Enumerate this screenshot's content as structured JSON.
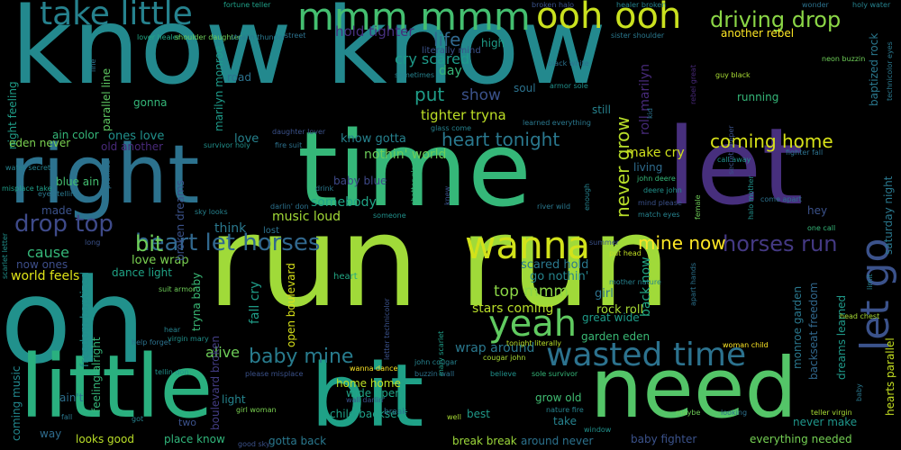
{
  "words": [
    {
      "text": "know know",
      "color": "#23898e"
    },
    {
      "text": "run run",
      "color": "#a0da39"
    },
    {
      "text": "oh",
      "color": "#21918c"
    },
    {
      "text": "time",
      "color": "#35b779"
    },
    {
      "text": "right",
      "color": "#2c728e"
    },
    {
      "text": "let",
      "color": "#472f7d"
    },
    {
      "text": "little",
      "color": "#2ab07f"
    },
    {
      "text": "bit",
      "color": "#1fa187"
    },
    {
      "text": "need",
      "color": "#54c568"
    },
    {
      "text": "wanna",
      "color": "#d2e21b"
    },
    {
      "text": "yeah",
      "color": "#60ca60"
    },
    {
      "text": "wasted time",
      "color": "#2c728e"
    },
    {
      "text": "let go",
      "color": "#3b528b"
    },
    {
      "text": "take little",
      "color": "#26828e"
    },
    {
      "text": "mmm mmm",
      "color": "#44bf70"
    },
    {
      "text": "ooh ooh",
      "color": "#cae11f"
    },
    {
      "text": "driving drop",
      "color": "#8bd646"
    },
    {
      "text": "heart let horses",
      "color": "#31688e"
    },
    {
      "text": "horses run",
      "color": "#443983"
    },
    {
      "text": "heart tonight",
      "color": "#2a788e"
    },
    {
      "text": "coming home",
      "color": "#d8e219"
    },
    {
      "text": "drop top",
      "color": "#3e4a89"
    },
    {
      "text": "baby mine",
      "color": "#287c8e"
    },
    {
      "text": "mine now",
      "color": "#fde725"
    },
    {
      "text": "never grow",
      "color": "#b8de29"
    },
    {
      "text": "hold tighter",
      "color": "#46307e"
    },
    {
      "text": "life",
      "color": "#31688e"
    },
    {
      "text": "cry scared",
      "color": "#1e9b8a"
    },
    {
      "text": "put",
      "color": "#1f9e89"
    },
    {
      "text": "show",
      "color": "#3b528b"
    },
    {
      "text": "tighter tryna",
      "color": "#bddf26"
    },
    {
      "text": "day",
      "color": "#35b779"
    },
    {
      "text": "roll marilyn",
      "color": "#472a7a"
    },
    {
      "text": "ones love",
      "color": "#21918c"
    },
    {
      "text": "know gotta",
      "color": "#26828e"
    },
    {
      "text": "nothin' world",
      "color": "#6ccd5a"
    },
    {
      "text": "make cry",
      "color": "#d0e11c"
    },
    {
      "text": "living",
      "color": "#2f6c8e"
    },
    {
      "text": "love",
      "color": "#26828e"
    },
    {
      "text": "cause",
      "color": "#35b779"
    },
    {
      "text": "bit",
      "color": "#6ece58"
    },
    {
      "text": "think",
      "color": "#2a788e"
    },
    {
      "text": "music loud",
      "color": "#a2da37"
    },
    {
      "text": "somebody",
      "color": "#20a486"
    },
    {
      "text": "baby blue",
      "color": "#3e4989"
    },
    {
      "text": "blue ain",
      "color": "#44bf70"
    },
    {
      "text": "ain color",
      "color": "#35b779"
    },
    {
      "text": "love wrap",
      "color": "#7ad151"
    },
    {
      "text": "dance light",
      "color": "#20a386"
    },
    {
      "text": "world feels",
      "color": "#dfe318"
    },
    {
      "text": "now ones",
      "color": "#3d4e8a"
    },
    {
      "text": "scared hold",
      "color": "#2a788e"
    },
    {
      "text": "go nothin'",
      "color": "#25858e"
    },
    {
      "text": "top mmm",
      "color": "#8bd646"
    },
    {
      "text": "stars coming",
      "color": "#b8de29"
    },
    {
      "text": "rock roll",
      "color": "#a8db34"
    },
    {
      "text": "great wide",
      "color": "#1e9c89"
    },
    {
      "text": "back now",
      "color": "#22a884"
    },
    {
      "text": "girl",
      "color": "#2c728e"
    },
    {
      "text": "alive",
      "color": "#6ece58"
    },
    {
      "text": "fall cry",
      "color": "#1f9e89"
    },
    {
      "text": "wrap around",
      "color": "#2a788e"
    },
    {
      "text": "garden eden",
      "color": "#3aba76"
    },
    {
      "text": "home home",
      "color": "#bddf26"
    },
    {
      "text": "wide open",
      "color": "#20a486"
    },
    {
      "text": "light",
      "color": "#25848e"
    },
    {
      "text": "ain't",
      "color": "#2d708e"
    },
    {
      "text": "child backseat",
      "color": "#1fa088"
    },
    {
      "text": "best",
      "color": "#1f9a8a"
    },
    {
      "text": "grow old",
      "color": "#40bd72"
    },
    {
      "text": "take",
      "color": "#26828e"
    },
    {
      "text": "never make",
      "color": "#1f968b"
    },
    {
      "text": "looks good",
      "color": "#bade28"
    },
    {
      "text": "place know",
      "color": "#31b57b"
    },
    {
      "text": "gotta back",
      "color": "#2a788e"
    },
    {
      "text": "break break",
      "color": "#9dd93b"
    },
    {
      "text": "around never",
      "color": "#2c728e"
    },
    {
      "text": "baby fighter",
      "color": "#3b528b"
    },
    {
      "text": "everything needed",
      "color": "#75d054"
    },
    {
      "text": "hey",
      "color": "#3b528b"
    },
    {
      "text": "way",
      "color": "#2f6c8e"
    },
    {
      "text": "saturday night",
      "color": "#2a788e"
    },
    {
      "text": "hearts parallel",
      "color": "#c5e021"
    },
    {
      "text": "dreams learned",
      "color": "#1f9a8a"
    },
    {
      "text": "backseat freedom",
      "color": "#31688e"
    },
    {
      "text": "monroe garden",
      "color": "#2a788e"
    },
    {
      "text": "tryna baby",
      "color": "#3aba76"
    },
    {
      "text": "broken dreams",
      "color": "#3b528b"
    },
    {
      "text": "boulevard broken",
      "color": "#433d84"
    },
    {
      "text": "feeling alright",
      "color": "#35b779"
    },
    {
      "text": "coming music",
      "color": "#23888e"
    },
    {
      "text": "freedom baptized",
      "color": "#228d8d"
    },
    {
      "text": "night feeling",
      "color": "#1f9e89"
    },
    {
      "text": "parallel line",
      "color": "#5ec962"
    },
    {
      "text": "marilyn monroe",
      "color": "#1e9b8a"
    },
    {
      "text": "eden never",
      "color": "#7ad151"
    },
    {
      "text": "old another",
      "color": "#482979"
    },
    {
      "text": "another rebel",
      "color": "#fde725"
    },
    {
      "text": "baptized rock",
      "color": "#2a788e"
    },
    {
      "text": "open boulevard",
      "color": "#d8e219"
    },
    {
      "text": "made",
      "color": "#3b528b"
    },
    {
      "text": "gonna",
      "color": "#35b779"
    },
    {
      "text": "road",
      "color": "#2c728e"
    },
    {
      "text": "running",
      "color": "#35b779"
    },
    {
      "text": "still",
      "color": "#26828e"
    },
    {
      "text": "soul",
      "color": "#2c728e"
    },
    {
      "text": "high",
      "color": "#1f9e89"
    },
    {
      "text": "literally mind",
      "color": "#3b528b"
    },
    {
      "text": "fortune teller",
      "color": "#1fa088"
    },
    {
      "text": "lover healer",
      "color": "#22a884"
    },
    {
      "text": "shoulder daughter",
      "color": "#6ece58"
    },
    {
      "text": "stealin thunder",
      "color": "#2a788e"
    },
    {
      "text": "broken halo",
      "color": "#3b528b"
    },
    {
      "text": "healer broken",
      "color": "#26828e"
    },
    {
      "text": "wonder",
      "color": "#2c728e"
    },
    {
      "text": "holy water",
      "color": "#26828e"
    },
    {
      "text": "neon buzzin",
      "color": "#6ece58"
    },
    {
      "text": "black white",
      "color": "#2c728e"
    },
    {
      "text": "guy black",
      "color": "#a8db34"
    },
    {
      "text": "john deere",
      "color": "#35b779"
    },
    {
      "text": "deere john",
      "color": "#21918c"
    },
    {
      "text": "mind please",
      "color": "#3b528b"
    },
    {
      "text": "match eyes",
      "color": "#26828e"
    },
    {
      "text": "come apart",
      "color": "#2c728e"
    },
    {
      "text": "call away",
      "color": "#21918c"
    },
    {
      "text": "one call",
      "color": "#35b779"
    },
    {
      "text": "summer",
      "color": "#3b528b"
    },
    {
      "text": "put head",
      "color": "#c2df23"
    },
    {
      "text": "river wild",
      "color": "#2a788e"
    },
    {
      "text": "water secret",
      "color": "#26828e"
    },
    {
      "text": "misplace take",
      "color": "#1f9e89"
    },
    {
      "text": "eyes tellin",
      "color": "#2a788e"
    },
    {
      "text": "sky looks",
      "color": "#26828e"
    },
    {
      "text": "heart",
      "color": "#22a884"
    },
    {
      "text": "lost",
      "color": "#2c728e"
    },
    {
      "text": "suit armor",
      "color": "#6ece58"
    },
    {
      "text": "help forget",
      "color": "#2c728e"
    },
    {
      "text": "virgin mary",
      "color": "#21918c"
    },
    {
      "text": "girl woman",
      "color": "#7ad151"
    },
    {
      "text": "please misplace",
      "color": "#3b528b"
    },
    {
      "text": "wanna dance",
      "color": "#fde725"
    },
    {
      "text": "john cougar",
      "color": "#26828e"
    },
    {
      "text": "cougar john",
      "color": "#a8db34"
    },
    {
      "text": "buzzin wall",
      "color": "#2c728e"
    },
    {
      "text": "believe",
      "color": "#21918c"
    },
    {
      "text": "sole survivor",
      "color": "#35b779"
    },
    {
      "text": "tonight literally",
      "color": "#b8de29"
    },
    {
      "text": "woman child",
      "color": "#fde725"
    },
    {
      "text": "head chest",
      "color": "#a8db34"
    },
    {
      "text": "wall darlin'",
      "color": "#3b528b"
    },
    {
      "text": "tellin don",
      "color": "#21918c"
    },
    {
      "text": "maybe",
      "color": "#6ece58"
    },
    {
      "text": "looking",
      "color": "#2c728e"
    },
    {
      "text": "teller virgin",
      "color": "#a8db34"
    },
    {
      "text": "good sky",
      "color": "#3b528b"
    },
    {
      "text": "fall",
      "color": "#2a788e"
    },
    {
      "text": "got",
      "color": "#26828e"
    },
    {
      "text": "two",
      "color": "#3b528b"
    },
    {
      "text": "well",
      "color": "#a8db34"
    },
    {
      "text": "break",
      "color": "#2c728e"
    },
    {
      "text": "window",
      "color": "#21918c"
    },
    {
      "text": "nature fire",
      "color": "#26828e"
    },
    {
      "text": "fire suit",
      "color": "#2c728e"
    },
    {
      "text": "survivor holy",
      "color": "#21918c"
    },
    {
      "text": "daughter lover",
      "color": "#3b528b"
    },
    {
      "text": "glass come",
      "color": "#26828e"
    },
    {
      "text": "learned everything",
      "color": "#2a788e"
    },
    {
      "text": "shatter glass",
      "color": "#35b779"
    },
    {
      "text": "darlin' don",
      "color": "#2c728e"
    },
    {
      "text": "drink",
      "color": "#2a788e"
    },
    {
      "text": "someone",
      "color": "#21918c"
    },
    {
      "text": "knew",
      "color": "#3b528b"
    },
    {
      "text": "enough",
      "color": "#26828e"
    },
    {
      "text": "secret keeper",
      "color": "#3b528b"
    },
    {
      "text": "fighter fall",
      "color": "#2c728e"
    },
    {
      "text": "female",
      "color": "#6ece58"
    },
    {
      "text": "halo mother",
      "color": "#21918c"
    },
    {
      "text": "rebel great",
      "color": "#482979"
    },
    {
      "text": "sister shoulder",
      "color": "#2a788e"
    },
    {
      "text": "street",
      "color": "#2c728e"
    },
    {
      "text": "sometimes",
      "color": "#26828e"
    },
    {
      "text": "armor sole",
      "color": "#21918c"
    },
    {
      "text": "mary scarlet",
      "color": "#1f9e89"
    },
    {
      "text": "letter technicolor",
      "color": "#3b528b"
    },
    {
      "text": "mother nature",
      "color": "#26828e"
    },
    {
      "text": "apart hands",
      "color": "#2c728e"
    },
    {
      "text": "scarlet letter",
      "color": "#21918c"
    },
    {
      "text": "long",
      "color": "#3b528b"
    },
    {
      "text": "technicolor eyes",
      "color": "#2a788e"
    },
    {
      "text": "limit",
      "color": "#26828e"
    },
    {
      "text": "promise",
      "color": "#2c728e"
    },
    {
      "text": "kid",
      "color": "#2c728e"
    },
    {
      "text": "baby",
      "color": "#2a788e"
    },
    {
      "text": "line",
      "color": "#2c728e"
    },
    {
      "text": "hear",
      "color": "#26828e"
    }
  ]
}
